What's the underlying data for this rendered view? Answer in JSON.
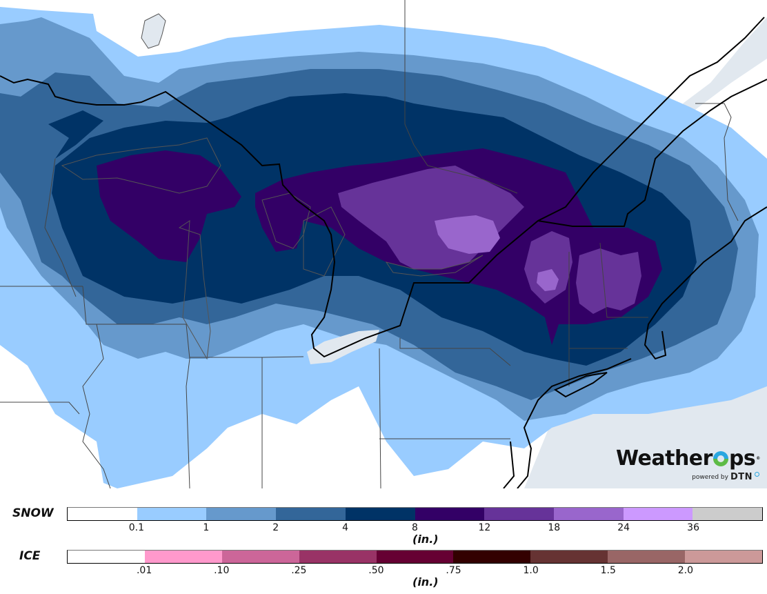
{
  "map": {
    "colors": {
      "none": "#ffffff",
      "water": "#e1e8ef",
      "s01": "#99ccff",
      "s1": "#6699cc",
      "s2": "#336699",
      "s4": "#003366",
      "s8": "#330066",
      "s12": "#663399",
      "s18": "#9966cc",
      "s24": "#cc99ff",
      "s36": "#cccccc"
    },
    "logo": {
      "brand_left": "Weather",
      "brand_right": "ps",
      "registered": "®",
      "powered_by": "powered by",
      "partner": "DTN"
    }
  },
  "legends": {
    "snow": {
      "label": "SNOW",
      "unit": "(in.)",
      "colors": [
        "#ffffff",
        "#99ccff",
        "#6699cc",
        "#336699",
        "#003366",
        "#330066",
        "#663399",
        "#9966cc",
        "#cc99ff",
        "#cccccc"
      ],
      "ticks": [
        "0.1",
        "1",
        "2",
        "4",
        "8",
        "12",
        "18",
        "24",
        "36"
      ]
    },
    "ice": {
      "label": "ICE",
      "unit": "(in.)",
      "colors": [
        "#ffffff",
        "#ff99cc",
        "#cc6699",
        "#993366",
        "#660033",
        "#330000",
        "#663333",
        "#996666",
        "#cc9999"
      ],
      "ticks": [
        ".01",
        ".10",
        ".25",
        ".50",
        ".75",
        "1.0",
        "1.5",
        "2.0"
      ]
    }
  }
}
